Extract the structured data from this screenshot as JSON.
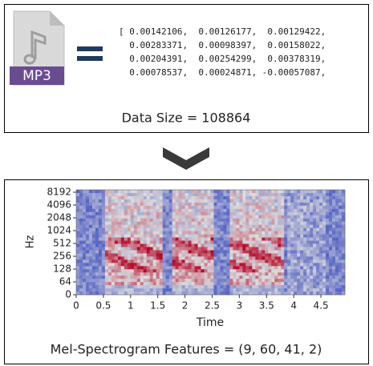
{
  "audio_panel": {
    "icon_label": "MP3",
    "array_lines": [
      "[ 0.00142106,  0.00126177,  0.00129422,",
      "  0.00283371,  0.00098397,  0.00158022,",
      "  0.00204391,  0.00254299,  0.00378319,",
      "  0.00078537,  0.00024871, -0.00057087,"
    ],
    "data_size": "Data Size = 108864"
  },
  "spectrogram_panel": {
    "y_axis_label": "Hz",
    "x_axis_label": "Time",
    "yticks": [
      "8192",
      "4096",
      "2048",
      "1024",
      "512",
      "256",
      "128",
      "64",
      "0"
    ],
    "xticks": [
      "0",
      "0.5",
      "1",
      "1.5",
      "2",
      "2.5",
      "3",
      "3.5",
      "4",
      "4.5"
    ],
    "caption": "Mel-Spectrogram Features = (9, 60, 41, 2)"
  }
}
